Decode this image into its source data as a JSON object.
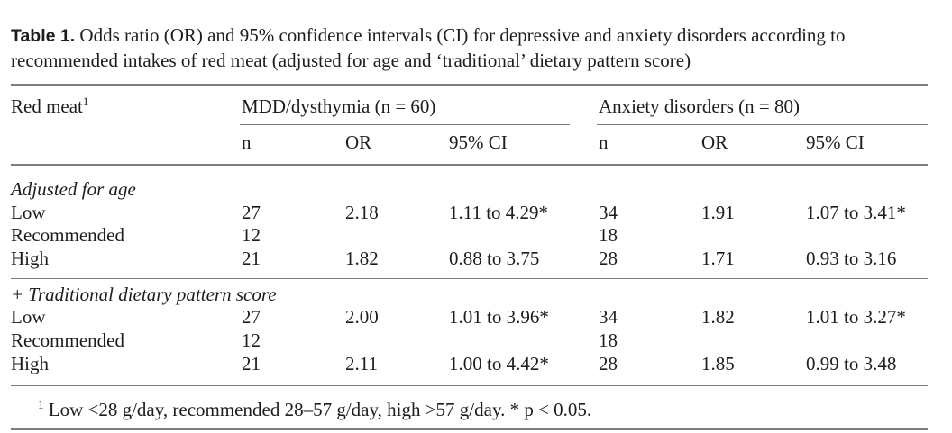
{
  "caption": {
    "label": "Table 1.",
    "text": " Odds ratio (OR) and 95% confidence intervals (CI) for depressive and anxiety disorders according to recommended intakes of red meat (adjusted for age and ‘traditional’ dietary pattern score)"
  },
  "header": {
    "rowlabel": "Red meat",
    "rowlabel_sup": "1",
    "group1": "MDD/dysthymia (n = 60)",
    "group2": "Anxiety disorders (n = 80)",
    "sub": [
      "n",
      "OR",
      "95% CI",
      "n",
      "OR",
      "95% CI"
    ]
  },
  "sections": [
    {
      "title": "Adjusted for age",
      "rows": [
        {
          "label": "Low",
          "n1": "27",
          "or1": "2.18",
          "ci1": "1.11 to 4.29*",
          "n2": "34",
          "or2": "1.91",
          "ci2": "1.07 to 3.41*"
        },
        {
          "label": "Recommended",
          "n1": "12",
          "or1": "",
          "ci1": "",
          "n2": "18",
          "or2": "",
          "ci2": ""
        },
        {
          "label": "High",
          "n1": "21",
          "or1": "1.82",
          "ci1": "0.88 to 3.75",
          "n2": "28",
          "or2": "1.71",
          "ci2": "0.93 to 3.16"
        }
      ]
    },
    {
      "title": "+ Traditional dietary pattern score",
      "rows": [
        {
          "label": "Low",
          "n1": "27",
          "or1": "2.00",
          "ci1": "1.01 to 3.96*",
          "n2": "34",
          "or2": "1.82",
          "ci2": "1.01 to 3.27*"
        },
        {
          "label": "Recommended",
          "n1": "12",
          "or1": "",
          "ci1": "",
          "n2": "18",
          "or2": "",
          "ci2": ""
        },
        {
          "label": "High",
          "n1": "21",
          "or1": "2.11",
          "ci1": "1.00 to 4.42*",
          "n2": "28",
          "or2": "1.85",
          "ci2": "0.99 to 3.48"
        }
      ]
    }
  ],
  "footnote": {
    "sup": "1",
    "text": " Low <28 g/day, recommended 28–57 g/day, high >57 g/day. * p < 0.05."
  }
}
